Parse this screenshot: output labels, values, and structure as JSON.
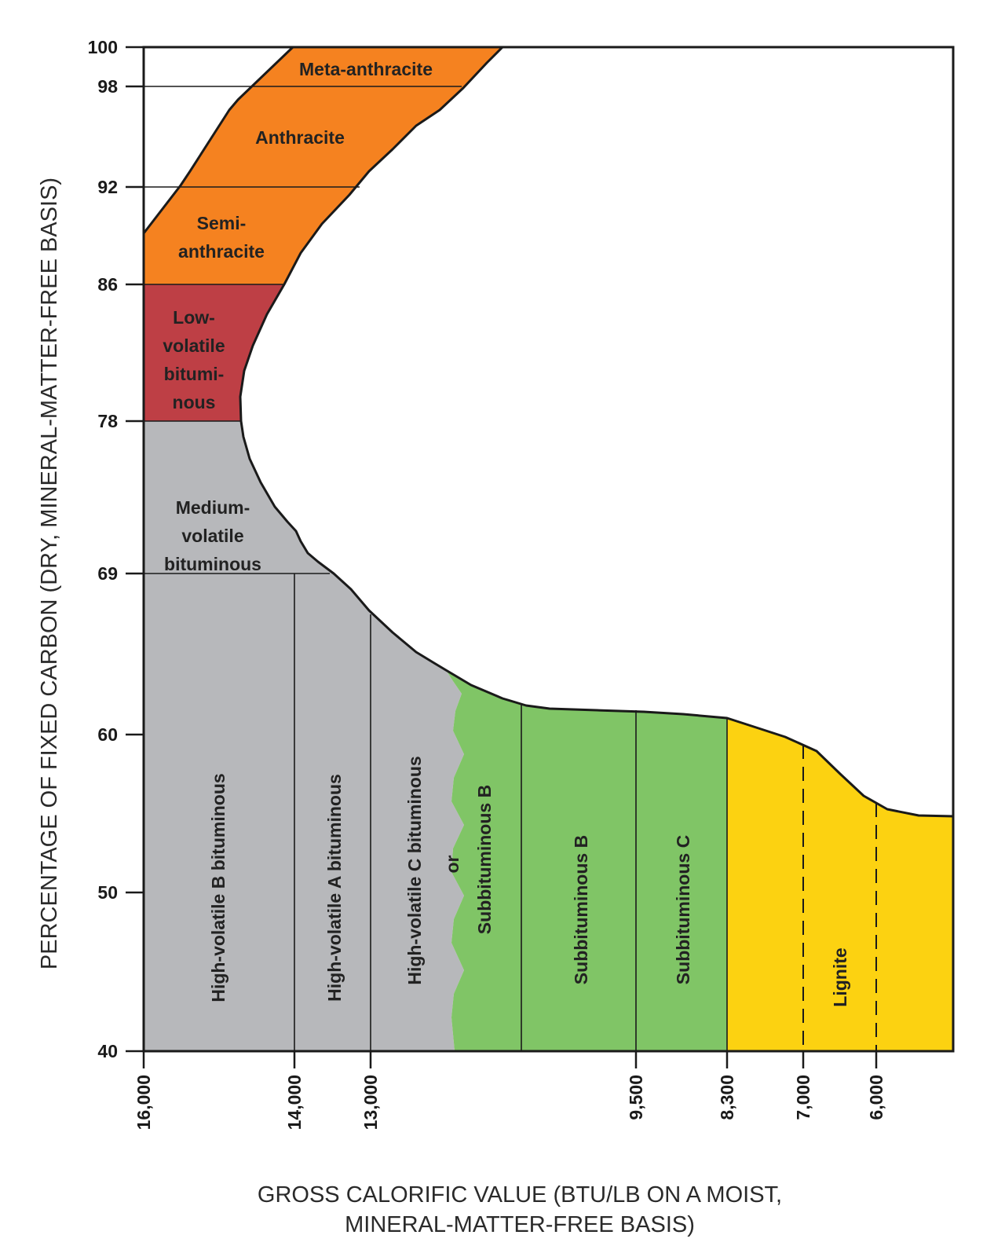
{
  "chart_data": {
    "type": "area",
    "title": "",
    "xlabel_line1": "GROSS CALORIFIC VALUE (BTU/LB ON A MOIST,",
    "xlabel_line2": "MINERAL-MATTER-FREE BASIS)",
    "ylabel": "PERCENTAGE OF FIXED CARBON (DRY, MINERAL-MATTER-FREE BASIS)",
    "x_ticks": [
      "16,000",
      "14,000",
      "13,000",
      "9,500",
      "8,300",
      "7,000",
      "6,000"
    ],
    "y_ticks": [
      "100",
      "98",
      "92",
      "86",
      "78",
      "69",
      "60",
      "50",
      "40"
    ],
    "ylim": [
      40,
      100
    ],
    "x_direction": "decreasing",
    "colors": {
      "anthracite": "#F58220",
      "low_volatile": "#BE3F45",
      "bituminous": "#B7B8BB",
      "subbituminous": "#80C566",
      "lignite": "#FCD211"
    },
    "regions": [
      {
        "rank": "Meta-anthracite",
        "fixed_carbon_min": 98,
        "fixed_carbon_max": 100
      },
      {
        "rank": "Anthracite",
        "fixed_carbon_min": 92,
        "fixed_carbon_max": 98
      },
      {
        "rank": "Semi-anthracite",
        "fixed_carbon_min": 86,
        "fixed_carbon_max": 92
      },
      {
        "rank": "Low-volatile bituminous",
        "fixed_carbon_min": 78,
        "fixed_carbon_max": 86
      },
      {
        "rank": "Medium-volatile bituminous",
        "fixed_carbon_min": 69,
        "fixed_carbon_max": 78
      },
      {
        "rank": "High-volatile A bituminous",
        "btu_min": 13000,
        "btu_max": 14000
      },
      {
        "rank": "High-volatile B bituminous",
        "btu_min": 14000,
        "btu_max": 16000
      },
      {
        "rank": "Subbituminous C",
        "btu_min": 8300,
        "btu_max": 9500
      }
    ],
    "labels": {
      "meta_anthracite": "Meta-anthracite",
      "anthracite": "Anthracite",
      "semi_anthracite_1": "Semi-",
      "semi_anthracite_2": "anthracite",
      "low_volatile_1": "Low-",
      "low_volatile_2": "volatile",
      "low_volatile_3": "bitumi-",
      "low_volatile_4": "nous",
      "medium_volatile_1": "Medium-",
      "medium_volatile_2": "volatile",
      "medium_volatile_3": "bituminous",
      "hvb": "High-volatile B bituminous",
      "hva": "High-volatile A bituminous",
      "hvc": "High-volatile C bituminous",
      "or": "or",
      "subb_alt": "Subbituminous B",
      "subb": "Subbituminous B",
      "subc": "Subbituminous C",
      "lignite": "Lignite"
    }
  }
}
